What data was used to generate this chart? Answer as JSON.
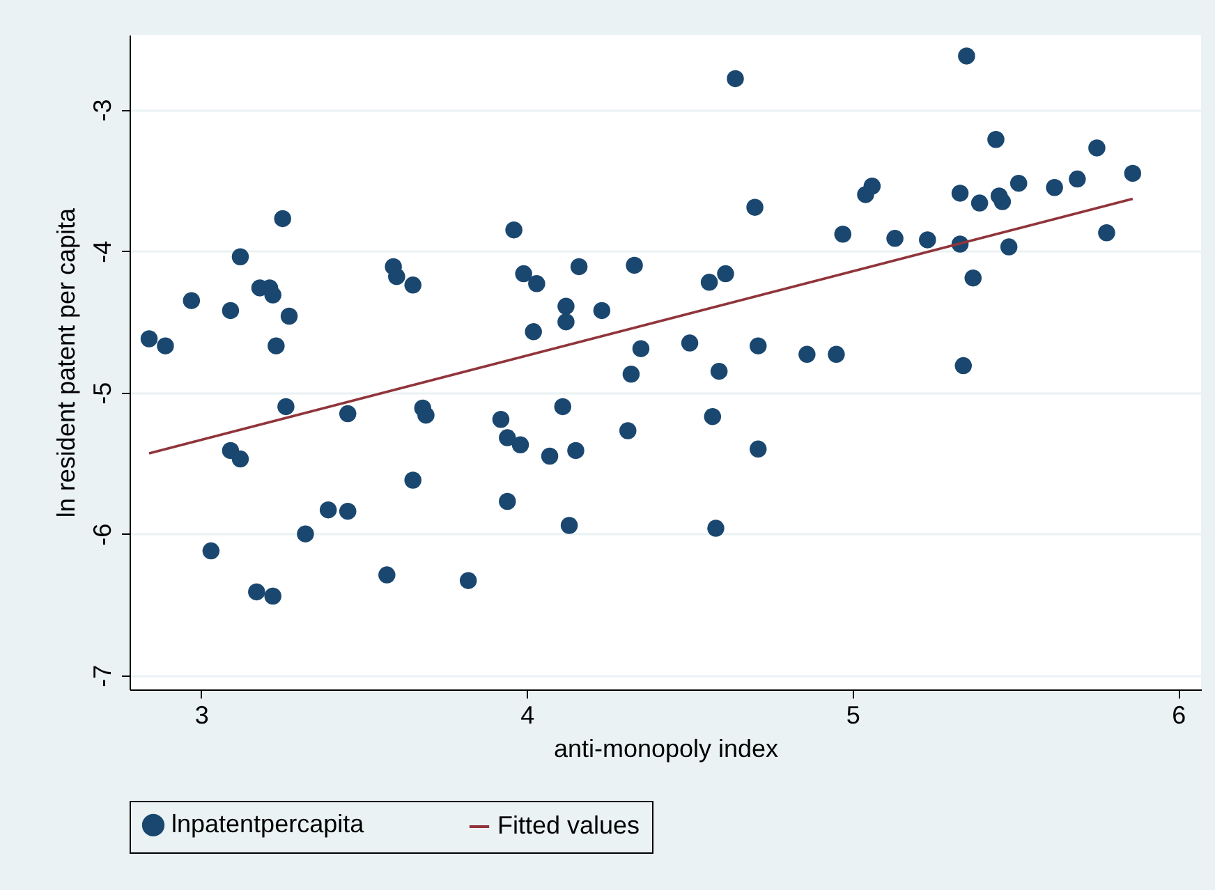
{
  "chart_data": {
    "type": "scatter",
    "xlabel": "anti-monopoly index",
    "ylabel": "ln resident patent per capita",
    "xlim": [
      2.78,
      6.07
    ],
    "ylim": [
      -7.1,
      -2.47
    ],
    "xticks": [
      3,
      4,
      5,
      6
    ],
    "yticks": [
      -3,
      -4,
      -5,
      -6,
      -7
    ],
    "grid": "y",
    "legend": "bottom",
    "series": [
      {
        "name": "lnpatentpercapita",
        "color": "#1a476f",
        "marker": "circle",
        "x": [
          2.84,
          2.89,
          2.97,
          3.03,
          3.09,
          3.09,
          3.12,
          3.12,
          3.17,
          3.18,
          3.21,
          3.22,
          3.23,
          3.22,
          3.25,
          3.27,
          3.26,
          3.32,
          3.39,
          3.45,
          3.45,
          3.57,
          3.59,
          3.6,
          3.65,
          3.65,
          3.68,
          3.69,
          3.82,
          3.92,
          3.94,
          3.94,
          3.96,
          3.98,
          3.99,
          4.02,
          4.03,
          4.07,
          4.11,
          4.12,
          4.12,
          4.13,
          4.15,
          4.16,
          4.23,
          4.31,
          4.32,
          4.33,
          4.35,
          4.5,
          4.56,
          4.57,
          4.58,
          4.59,
          4.61,
          4.64,
          4.7,
          4.71,
          4.71,
          4.86,
          4.95,
          4.97,
          5.04,
          5.06,
          5.13,
          5.23,
          5.33,
          5.33,
          5.34,
          5.35,
          5.37,
          5.39,
          5.44,
          5.45,
          5.46,
          5.48,
          5.51,
          5.62,
          5.69,
          5.75,
          5.78,
          5.86
        ],
        "values": [
          -4.62,
          -4.67,
          -4.35,
          -6.12,
          -4.42,
          -5.41,
          -4.04,
          -5.47,
          -6.41,
          -4.26,
          -4.26,
          -4.31,
          -4.67,
          -6.44,
          -3.77,
          -4.46,
          -5.1,
          -6.0,
          -5.83,
          -5.84,
          -5.15,
          -6.29,
          -4.11,
          -4.18,
          -4.24,
          -5.62,
          -5.11,
          -5.16,
          -6.33,
          -5.19,
          -5.32,
          -5.77,
          -3.85,
          -5.37,
          -4.16,
          -4.57,
          -4.23,
          -5.45,
          -5.1,
          -4.39,
          -4.5,
          -5.94,
          -5.41,
          -4.11,
          -4.42,
          -5.27,
          -4.87,
          -4.1,
          -4.69,
          -4.65,
          -4.22,
          -5.17,
          -5.96,
          -4.85,
          -4.16,
          -2.78,
          -3.69,
          -4.67,
          -5.4,
          -4.73,
          -4.73,
          -3.88,
          -3.6,
          -3.54,
          -3.91,
          -3.92,
          -3.59,
          -3.95,
          -4.81,
          -2.62,
          -4.19,
          -3.66,
          -3.21,
          -3.61,
          -3.65,
          -3.97,
          -3.52,
          -3.55,
          -3.49,
          -3.27,
          -3.87,
          -3.45
        ]
      },
      {
        "name": "Fitted values",
        "type": "line",
        "color": "#90353b",
        "x": [
          2.84,
          5.86
        ],
        "values": [
          -5.43,
          -3.63
        ]
      }
    ]
  }
}
